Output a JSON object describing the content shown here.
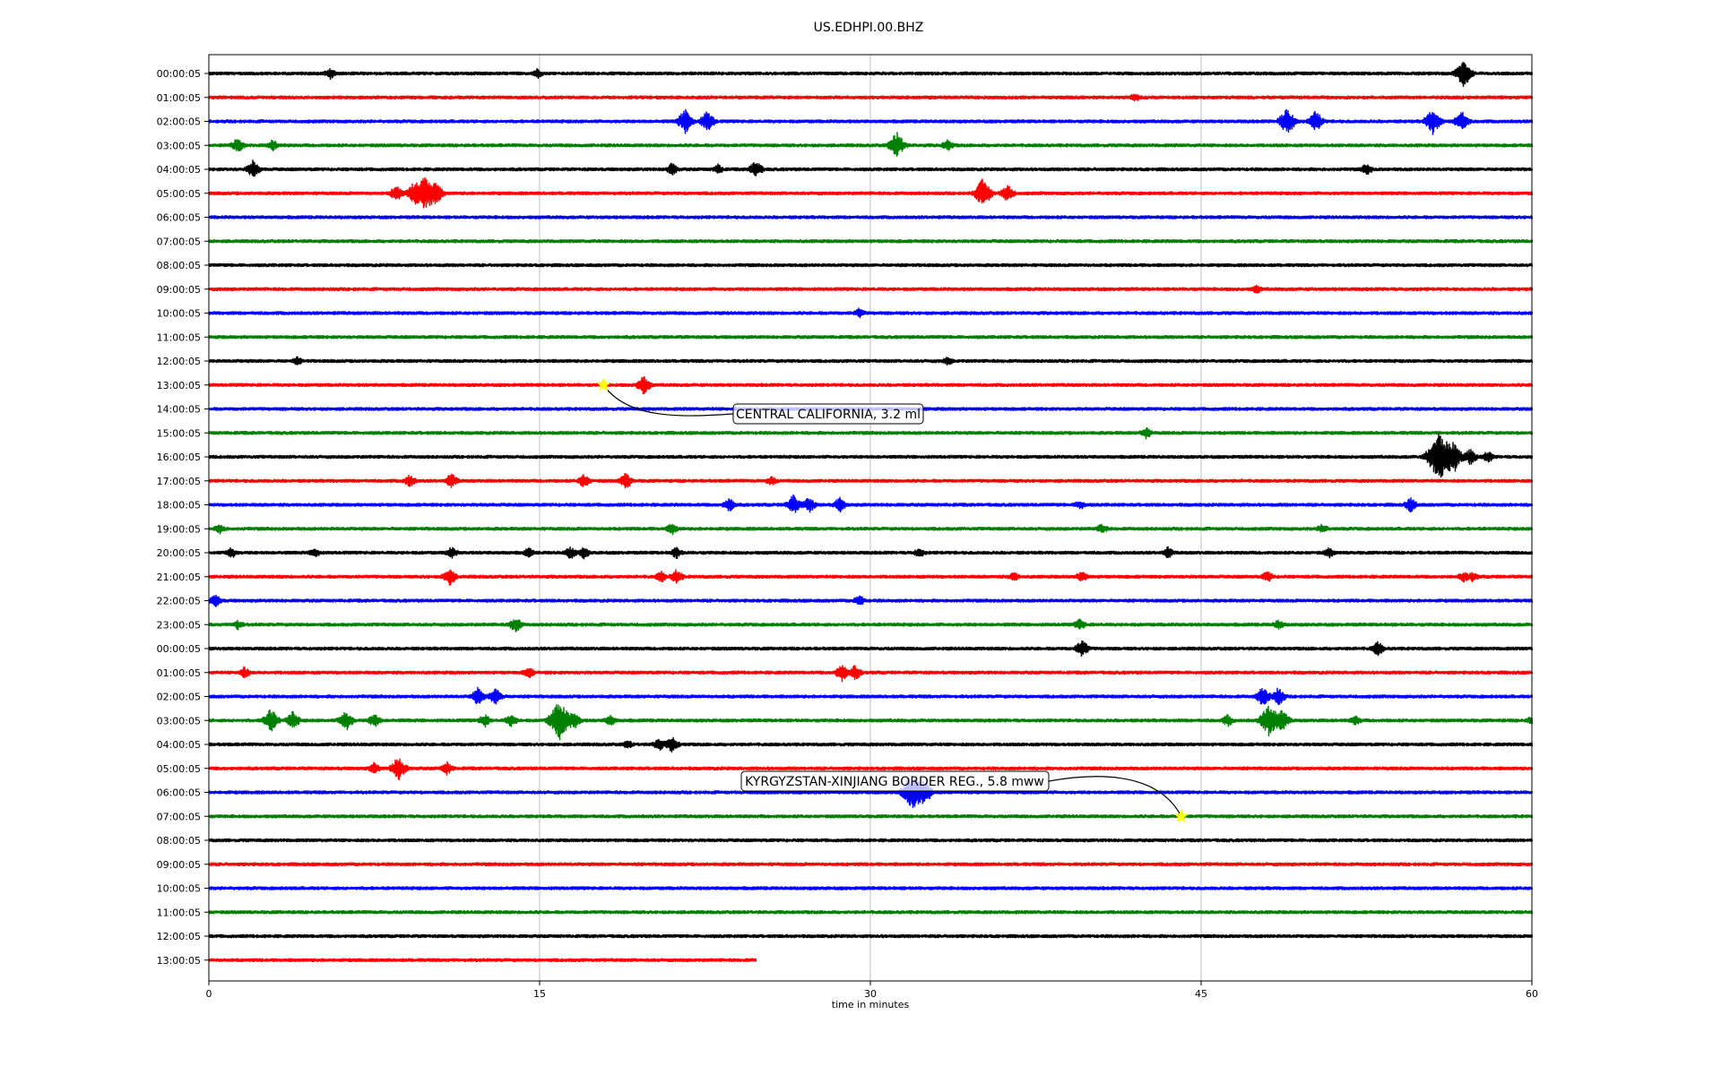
{
  "chart_data": {
    "type": "line",
    "title": "US.EDHPI.00.BHZ",
    "xlabel": "time in minutes",
    "ylabel": "",
    "xlim": [
      0,
      60
    ],
    "x_ticks": [
      0,
      15,
      30,
      45,
      60
    ],
    "x_tick_labels": [
      "0",
      "15",
      "30",
      "45",
      "60"
    ],
    "grid": "vertical",
    "trace_colors": [
      "#000000",
      "#ff0000",
      "#0000ff",
      "#008000"
    ],
    "rows": [
      {
        "label": "00:00:05",
        "bursts": [
          [
            5.5,
            0.6
          ],
          [
            14.9,
            0.5
          ],
          [
            56.9,
            1.6
          ]
        ]
      },
      {
        "label": "01:00:05",
        "bursts": [
          [
            42,
            0.4
          ]
        ]
      },
      {
        "label": "02:00:05",
        "bursts": [
          [
            21.6,
            1.4
          ],
          [
            22.6,
            1.2
          ],
          [
            48.9,
            1.6
          ],
          [
            50.2,
            1.2
          ],
          [
            55.5,
            1.5
          ],
          [
            56.8,
            1.2
          ]
        ]
      },
      {
        "label": "03:00:05",
        "bursts": [
          [
            1.3,
            0.8
          ],
          [
            2.9,
            0.6
          ],
          [
            31.2,
            1.5
          ],
          [
            33.5,
            0.6
          ]
        ]
      },
      {
        "label": "04:00:05",
        "bursts": [
          [
            2.0,
            1.0
          ],
          [
            21,
            0.7
          ],
          [
            23.1,
            0.5
          ],
          [
            24.8,
            1.0
          ],
          [
            52.5,
            0.6
          ]
        ]
      },
      {
        "label": "05:00:05",
        "bursts": [
          [
            8.5,
            0.9
          ],
          [
            9.3,
            1.2
          ],
          [
            9.8,
            2.0
          ],
          [
            10.3,
            1.2
          ],
          [
            35.1,
            1.7
          ],
          [
            36.2,
            1.0
          ]
        ]
      },
      {
        "label": "06:00:05",
        "bursts": []
      },
      {
        "label": "07:00:05",
        "bursts": []
      },
      {
        "label": "08:00:05",
        "bursts": []
      },
      {
        "label": "09:00:05",
        "bursts": [
          [
            47.5,
            0.4
          ]
        ]
      },
      {
        "label": "10:00:05",
        "bursts": [
          [
            29.5,
            0.5
          ]
        ]
      },
      {
        "label": "11:00:05",
        "bursts": []
      },
      {
        "label": "12:00:05",
        "bursts": [
          [
            4,
            0.4
          ],
          [
            33.5,
            0.4
          ]
        ]
      },
      {
        "label": "13:00:05",
        "bursts": [
          [
            19.7,
            1.1
          ]
        ]
      },
      {
        "label": "14:00:05",
        "bursts": []
      },
      {
        "label": "15:00:05",
        "bursts": [
          [
            42.5,
            0.6
          ]
        ]
      },
      {
        "label": "16:00:05",
        "bursts": [
          [
            55.8,
            3.0
          ],
          [
            56.5,
            1.5
          ],
          [
            57.2,
            0.9
          ],
          [
            58.0,
            0.6
          ]
        ]
      },
      {
        "label": "17:00:05",
        "bursts": [
          [
            9.1,
            0.7
          ],
          [
            11.0,
            0.8
          ],
          [
            17.0,
            0.8
          ],
          [
            18.9,
            0.9
          ],
          [
            25.5,
            0.5
          ]
        ]
      },
      {
        "label": "18:00:05",
        "bursts": [
          [
            23.6,
            0.8
          ],
          [
            26.5,
            1.1
          ],
          [
            27.2,
            0.9
          ],
          [
            28.6,
            0.8
          ],
          [
            39.5,
            0.5
          ],
          [
            54.5,
            0.8
          ]
        ]
      },
      {
        "label": "19:00:05",
        "bursts": [
          [
            0.5,
            0.5
          ],
          [
            21,
            0.6
          ],
          [
            40.5,
            0.5
          ],
          [
            50.5,
            0.5
          ]
        ]
      },
      {
        "label": "20:00:05",
        "bursts": [
          [
            1,
            0.6
          ],
          [
            4.8,
            0.5
          ],
          [
            11,
            0.6
          ],
          [
            14.5,
            0.5
          ],
          [
            16.4,
            0.7
          ],
          [
            17.0,
            0.6
          ],
          [
            21.2,
            0.6
          ],
          [
            32.2,
            0.5
          ],
          [
            43.5,
            0.6
          ],
          [
            50.8,
            0.5
          ]
        ]
      },
      {
        "label": "21:00:05",
        "bursts": [
          [
            10.9,
            1.0
          ],
          [
            20.5,
            0.6
          ],
          [
            21.2,
            0.8
          ],
          [
            36.5,
            0.5
          ],
          [
            39.6,
            0.6
          ],
          [
            48.0,
            0.6
          ],
          [
            56.9,
            0.5
          ],
          [
            57.3,
            0.5
          ]
        ]
      },
      {
        "label": "22:00:05",
        "bursts": [
          [
            0.3,
            0.7
          ],
          [
            29.5,
            0.6
          ]
        ]
      },
      {
        "label": "23:00:05",
        "bursts": [
          [
            1.3,
            0.5
          ],
          [
            13.9,
            0.9
          ],
          [
            39.5,
            0.6
          ],
          [
            48.5,
            0.5
          ]
        ]
      },
      {
        "label": "00:00:05",
        "bursts": [
          [
            39.6,
            1.0
          ],
          [
            53,
            0.8
          ]
        ]
      },
      {
        "label": "01:00:05",
        "bursts": [
          [
            1.6,
            0.6
          ],
          [
            14.5,
            0.6
          ],
          [
            28.7,
            1.0
          ],
          [
            29.3,
            0.8
          ]
        ]
      },
      {
        "label": "02:00:05",
        "bursts": [
          [
            12.2,
            1.0
          ],
          [
            13.0,
            1.0
          ],
          [
            47.8,
            1.1
          ],
          [
            48.5,
            1.0
          ]
        ]
      },
      {
        "label": "03:00:05",
        "bursts": [
          [
            2.8,
            1.4
          ],
          [
            3.8,
            1.0
          ],
          [
            6.2,
            1.2
          ],
          [
            7.5,
            0.8
          ],
          [
            12.5,
            0.7
          ],
          [
            13.7,
            0.7
          ],
          [
            15.9,
            2.4
          ],
          [
            16.6,
            0.8
          ],
          [
            18.2,
            0.6
          ],
          [
            48.1,
            2.0
          ],
          [
            48.7,
            1.1
          ],
          [
            46.2,
            0.6
          ],
          [
            52,
            0.5
          ],
          [
            60,
            0.5
          ]
        ]
      },
      {
        "label": "04:00:05",
        "bursts": [
          [
            20.4,
            0.7
          ],
          [
            21.0,
            0.9
          ],
          [
            19,
            0.4
          ]
        ]
      },
      {
        "label": "05:00:05",
        "bursts": [
          [
            7.5,
            0.6
          ],
          [
            8.6,
            1.4
          ],
          [
            10.8,
            0.7
          ]
        ]
      },
      {
        "label": "06:00:05",
        "bursts": [
          [
            31.9,
            2.3
          ],
          [
            32.5,
            1.2
          ]
        ]
      },
      {
        "label": "07:00:05",
        "bursts": []
      },
      {
        "label": "08:00:05",
        "bursts": []
      },
      {
        "label": "09:00:05",
        "bursts": []
      },
      {
        "label": "10:00:05",
        "bursts": []
      },
      {
        "label": "11:00:05",
        "bursts": []
      },
      {
        "label": "12:00:05",
        "bursts": []
      },
      {
        "label": "13:00:05",
        "end": 24.8,
        "bursts": []
      }
    ],
    "annotations": [
      {
        "text": "CENTRAL CALIFORNIA, 3.2 ml",
        "row": 13,
        "x": 17.9
      },
      {
        "text": "KYRGYZSTAN-XINJIANG BORDER REG., 5.8 mww",
        "row": 31,
        "x": 44.1
      }
    ]
  }
}
